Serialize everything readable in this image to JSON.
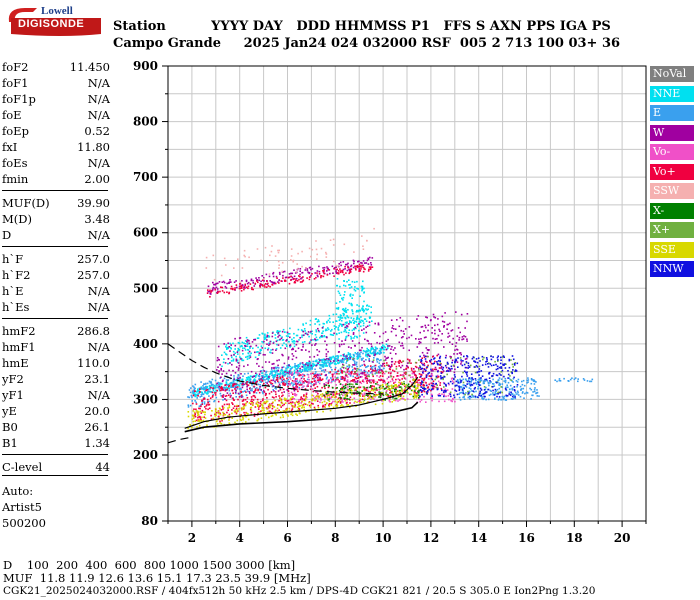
{
  "logo": {
    "top": "Lowell",
    "bottom": "DIGISONDE"
  },
  "header": {
    "row1": "Station          YYYY DAY   DDD HHMMSS P1   FFS S AXN PPS IGA PS",
    "row2": "Campo Grande     2025 Jan24 024 032000 RSF  005 2 713 100 03+ 36"
  },
  "params": [
    {
      "name": "foF2",
      "value": "11.450"
    },
    {
      "name": "foF1",
      "value": "N/A"
    },
    {
      "name": "foF1p",
      "value": "N/A"
    },
    {
      "name": "foE",
      "value": "N/A"
    },
    {
      "name": "foEp",
      "value": "0.52"
    },
    {
      "name": "fxI",
      "value": "11.80"
    },
    {
      "name": "foEs",
      "value": "N/A"
    },
    {
      "name": "fmin",
      "value": "2.00"
    },
    {
      "name": "MUF(D)",
      "value": "39.90"
    },
    {
      "name": "M(D)",
      "value": "3.48"
    },
    {
      "name": "D",
      "value": "N/A"
    },
    {
      "name": "h`F",
      "value": "257.0"
    },
    {
      "name": "h`F2",
      "value": "257.0"
    },
    {
      "name": "h`E",
      "value": "N/A"
    },
    {
      "name": "h`Es",
      "value": "N/A"
    },
    {
      "name": "hmF2",
      "value": "286.8"
    },
    {
      "name": "hmF1",
      "value": "N/A"
    },
    {
      "name": "hmE",
      "value": "110.0"
    },
    {
      "name": "yF2",
      "value": "23.1"
    },
    {
      "name": "yF1",
      "value": "N/A"
    },
    {
      "name": "yE",
      "value": "20.0"
    },
    {
      "name": "B0",
      "value": "26.1"
    },
    {
      "name": "B1",
      "value": "1.34"
    },
    {
      "name": "C-level",
      "value": "44"
    }
  ],
  "auto": {
    "line1": "Auto:",
    "line2": "Artist5",
    "line3": "500200"
  },
  "legend": [
    {
      "label": "NoVal",
      "color": "#7f7f7f"
    },
    {
      "label": "NNE",
      "color": "#00e0f0"
    },
    {
      "label": "E",
      "color": "#3aa0ee"
    },
    {
      "label": "W",
      "color": "#a000a0"
    },
    {
      "label": "Vo-",
      "color": "#f050c8"
    },
    {
      "label": "Vo+",
      "color": "#f00040"
    },
    {
      "label": "SSW",
      "color": "#f5b0b0"
    },
    {
      "label": "X-",
      "color": "#008000"
    },
    {
      "label": "X+",
      "color": "#70b040"
    },
    {
      "label": "SSE",
      "color": "#d8d800"
    },
    {
      "label": "NNW",
      "color": "#1010e0"
    }
  ],
  "bottom": {
    "d_line": "D    100  200  400  600  800 1000 1500 3000 [km]",
    "muf_line": "MUF  11.8 11.9 12.6 13.6 15.1 17.3 23.5 39.9 [MHz]",
    "file_line": "CGK21_2025024032000.RSF / 404fx512h 50 kHz 2.5 km / DPS-4D CGK21 821 / 20.5 S 305.0 E Ion2Png 1.3.20"
  },
  "chart_data": {
    "type": "scatter",
    "title": "",
    "xlabel": "",
    "ylabel": "",
    "xlim": [
      1,
      21
    ],
    "ylim": [
      80,
      900
    ],
    "xticks": [
      2,
      4,
      6,
      8,
      10,
      12,
      14,
      16,
      18,
      20
    ],
    "yticks": [
      80,
      200,
      300,
      400,
      500,
      600,
      700,
      800,
      900
    ],
    "grid": true,
    "legend_position": "right",
    "profile_curve": {
      "x": [
        1.7,
        2.5,
        3.5,
        5.0,
        6.5,
        8.0,
        9.0,
        10.0,
        10.8,
        11.2,
        11.45
      ],
      "y": [
        248,
        260,
        268,
        274,
        279,
        284,
        290,
        300,
        310,
        325,
        340
      ]
    },
    "trace_curve": {
      "x": [
        1.7,
        2.5,
        4.0,
        6.0,
        8.0,
        9.5,
        10.5,
        11.2,
        11.45
      ],
      "y": [
        242,
        250,
        256,
        260,
        266,
        272,
        278,
        285,
        295
      ]
    },
    "dashed_curve": {
      "x": [
        1.0,
        1.5,
        2.0,
        2.5,
        3.0,
        3.5,
        4.0,
        5.0,
        6.0,
        7.0,
        8.0,
        9.0,
        10.0
      ],
      "y": [
        400,
        385,
        370,
        358,
        348,
        340,
        333,
        325,
        320,
        316,
        313,
        311,
        310
      ],
      "x2": [
        1.0,
        1.5,
        2.0
      ],
      "y2": [
        222,
        228,
        232
      ]
    },
    "series": [
      {
        "name": "NNE",
        "regions": [
          {
            "x": [
              2.0,
              10.2
            ],
            "y": [
              305,
              320
            ],
            "slope": 10,
            "n": 500
          },
          {
            "x": [
              3.2,
              9.5
            ],
            "y": [
              360,
              400
            ],
            "slope": 12,
            "n": 320
          },
          {
            "x": [
              8.0,
              9.2
            ],
            "y": [
              410,
              520
            ],
            "slope": 0,
            "n": 120
          }
        ]
      },
      {
        "name": "E",
        "regions": [
          {
            "x": [
              1.8,
              10.0
            ],
            "y": [
              285,
              330
            ],
            "slope": 8,
            "n": 500
          },
          {
            "x": [
              13.0,
              16.5
            ],
            "y": [
              300,
              340
            ],
            "slope": 0,
            "n": 240
          },
          {
            "x": [
              17.0,
              18.8
            ],
            "y": [
              333,
              340
            ],
            "slope": 0,
            "n": 20
          }
        ]
      },
      {
        "name": "W",
        "regions": [
          {
            "x": [
              3.0,
              13.5
            ],
            "y": [
              300,
              410
            ],
            "slope": 5,
            "n": 600
          },
          {
            "x": [
              2.6,
              9.6
            ],
            "y": [
              490,
              510
            ],
            "slope": 7,
            "n": 200
          }
        ]
      },
      {
        "name": "Vo-",
        "regions": [
          {
            "x": [
              6.0,
              13.0
            ],
            "y": [
              295,
              350
            ],
            "slope": 0,
            "n": 300
          }
        ]
      },
      {
        "name": "Vo+",
        "regions": [
          {
            "x": [
              2.0,
              12.5
            ],
            "y": [
              255,
              320
            ],
            "slope": 6,
            "n": 700
          },
          {
            "x": [
              2.6,
              9.6
            ],
            "y": [
              485,
              500
            ],
            "slope": 7,
            "n": 160
          }
        ]
      },
      {
        "name": "SSW",
        "regions": [
          {
            "x": [
              2.5,
              9.6
            ],
            "y": [
              500,
              560
            ],
            "slope": 7,
            "n": 70
          }
        ]
      },
      {
        "name": "X-",
        "regions": [
          {
            "x": [
              7.5,
              11.5
            ],
            "y": [
              300,
              330
            ],
            "slope": 0,
            "n": 120
          }
        ]
      },
      {
        "name": "X+",
        "regions": [
          {
            "x": [
              8.0,
              15.5
            ],
            "y": [
              310,
              380
            ],
            "slope": 0,
            "n": 120
          }
        ]
      },
      {
        "name": "SSE",
        "regions": [
          {
            "x": [
              1.8,
              11.5
            ],
            "y": [
              245,
              280
            ],
            "slope": 6,
            "n": 400
          }
        ]
      },
      {
        "name": "NNW",
        "regions": [
          {
            "x": [
              11.5,
              15.6
            ],
            "y": [
              305,
              380
            ],
            "slope": 0,
            "n": 300
          }
        ]
      }
    ]
  }
}
